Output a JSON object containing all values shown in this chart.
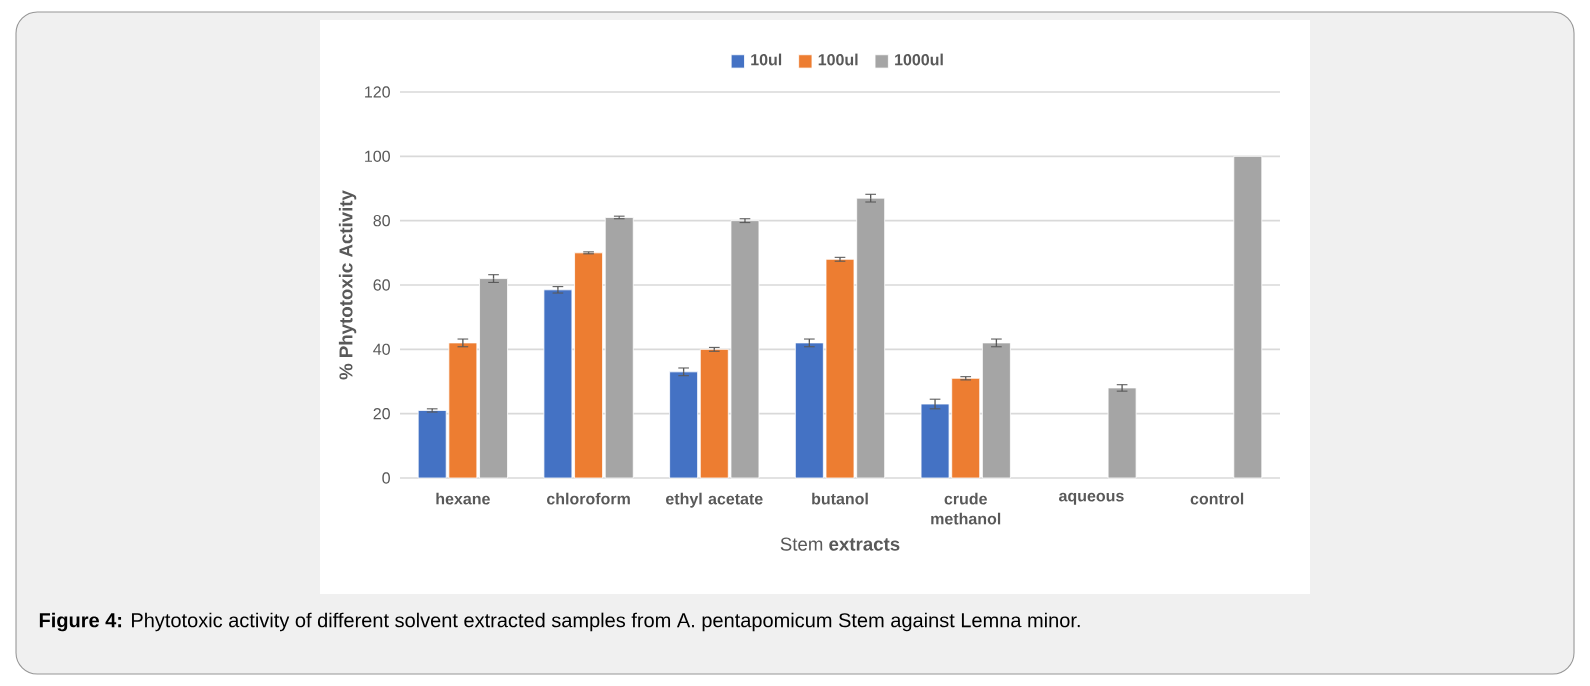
{
  "chart_data": {
    "type": "bar",
    "xlabel": "Stem **extracts**",
    "ylabel": "% Phytotoxic Activity",
    "categories": [
      "hexane",
      "chloroform",
      "ethyl acetate",
      "butanol",
      "crude methanol",
      "aqueous",
      "control"
    ],
    "series": [
      {
        "name": "10ul",
        "color": "#4472c4",
        "values": [
          21,
          58.5,
          33,
          42,
          23,
          null,
          null
        ],
        "errors": [
          0.5,
          1,
          1.2,
          1.2,
          1.5,
          null,
          null
        ]
      },
      {
        "name": "100ul",
        "color": "#ed7d31",
        "values": [
          42,
          70,
          40,
          68,
          31,
          null,
          null
        ],
        "errors": [
          1.2,
          0.3,
          0.6,
          0.6,
          0.5,
          null,
          null
        ]
      },
      {
        "name": "1000ul",
        "color": "#a5a5a5",
        "values": [
          62,
          81,
          80,
          87,
          42,
          28,
          100
        ],
        "errors": [
          1.2,
          0.4,
          0.6,
          1.2,
          1.2,
          1,
          null
        ]
      }
    ],
    "ylim": [
      0,
      120
    ],
    "yticks": [
      0,
      20,
      40,
      60,
      80,
      100,
      120
    ],
    "grid": "y",
    "legend": "top",
    "annotations": [
      "**Figure 4:** Phytotoxic activity of different solvent extracted samples from A. pentapomicum Stem against Lemna minor."
    ]
  }
}
